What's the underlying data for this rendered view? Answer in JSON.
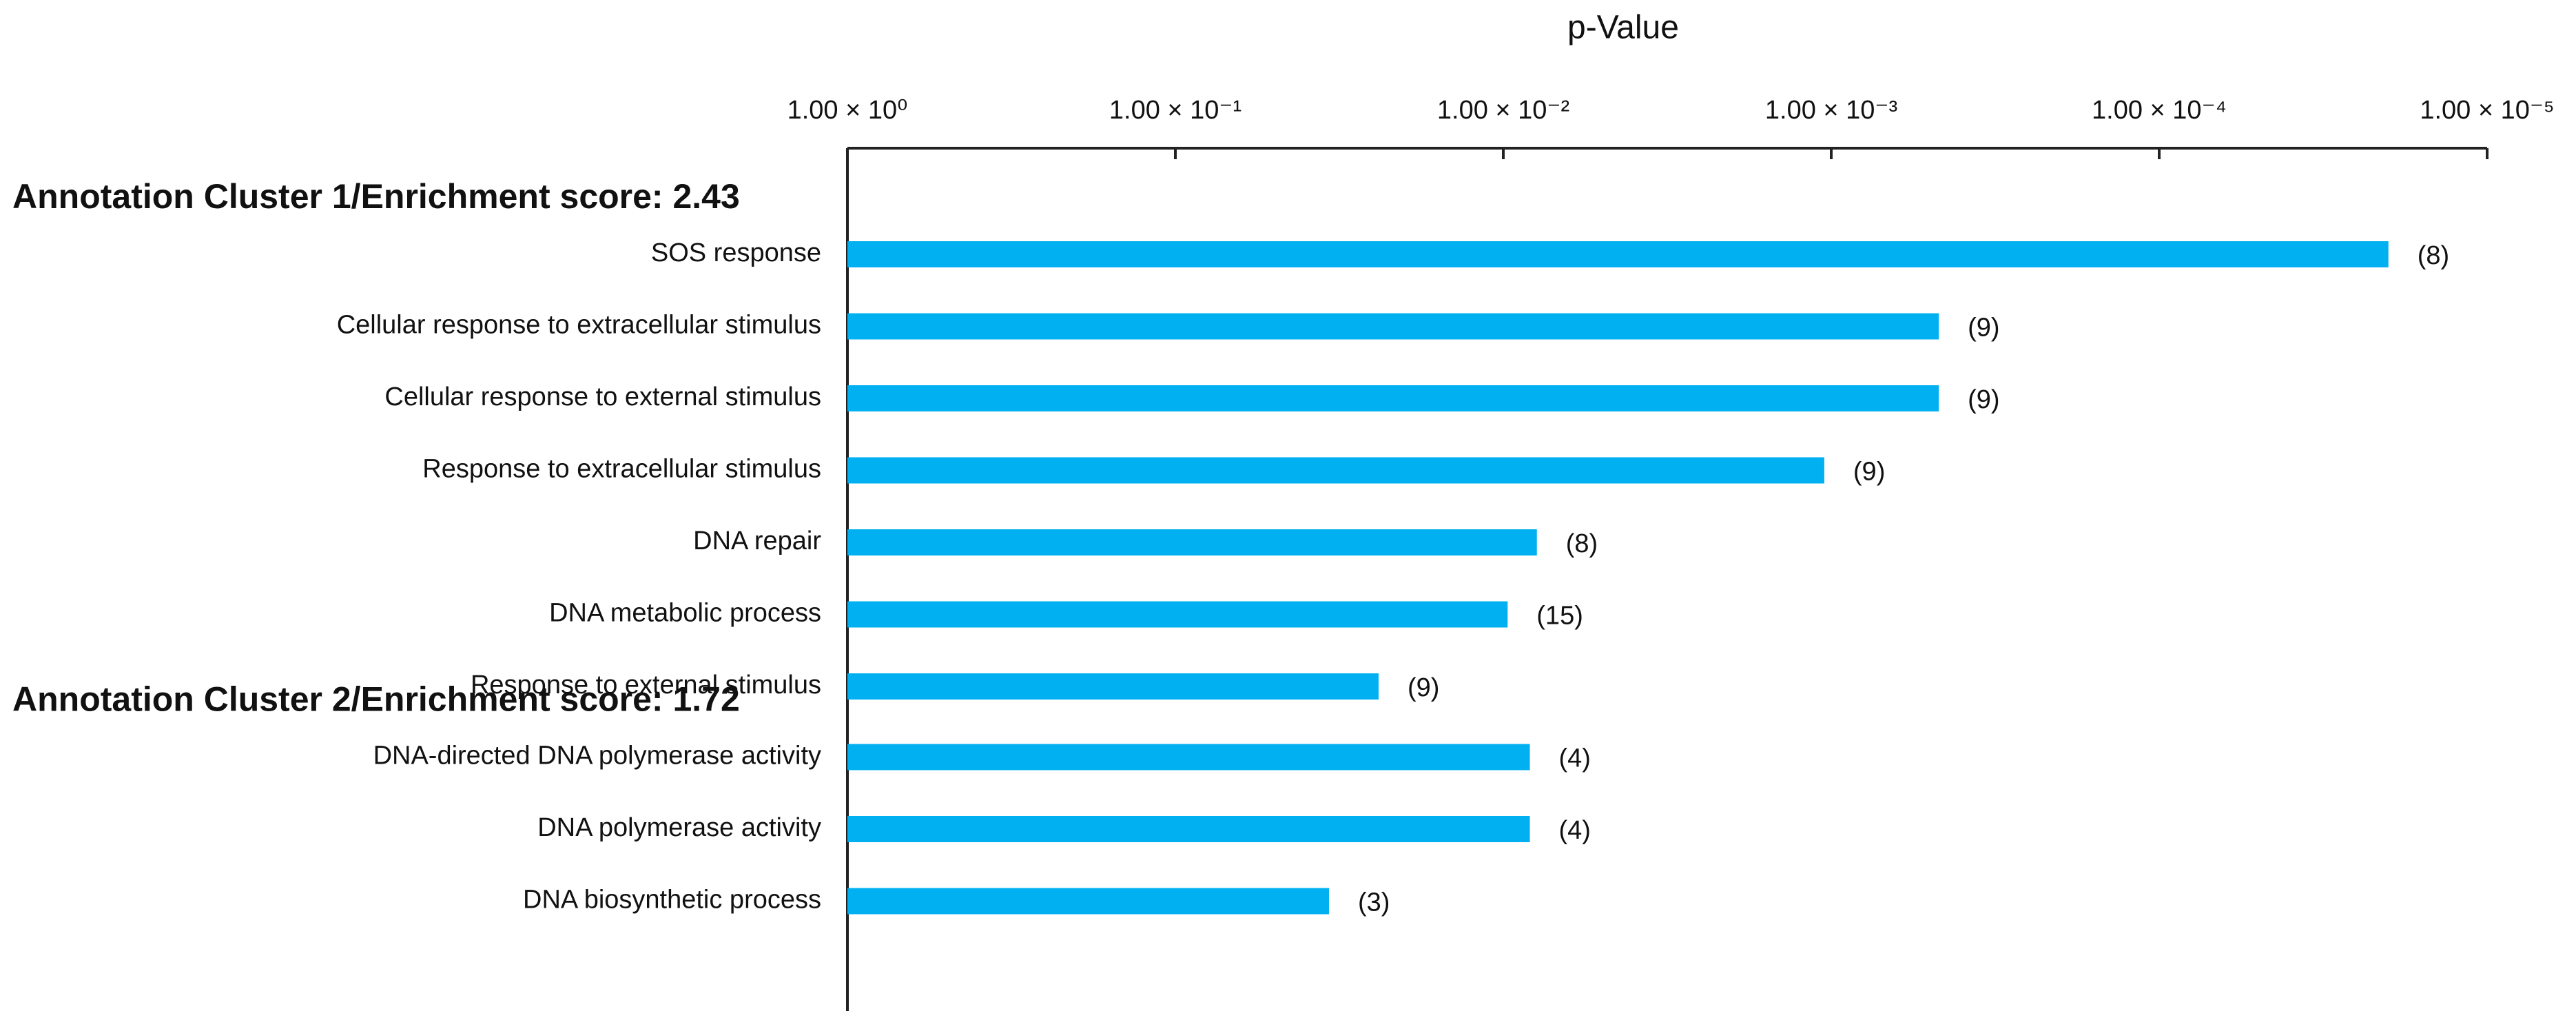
{
  "chart_data": {
    "type": "bar",
    "orientation": "horizontal",
    "title": "p-Value",
    "x_scale": "log",
    "xlim": [
      1,
      1e-05
    ],
    "color": "#00b0f0",
    "xticks": [
      {
        "value": 1,
        "label": "1.00 × 10⁰"
      },
      {
        "value": 0.1,
        "label": "1.00 × 10⁻¹"
      },
      {
        "value": 0.01,
        "label": "1.00 × 10⁻²"
      },
      {
        "value": 0.001,
        "label": "1.00 × 10⁻³"
      },
      {
        "value": 0.0001,
        "label": "1.00 × 10⁻⁴"
      },
      {
        "value": 1e-05,
        "label": "1.00 × 10⁻⁵"
      }
    ],
    "clusters": [
      {
        "title": "Annotation Cluster 1/Enrichment score: 2.43",
        "categories": [
          "SOS response",
          "Cellular response to extracellular stimulus",
          "Cellular response to external stimulus",
          "Response to extracellular stimulus",
          "DNA repair",
          "DNA metabolic process",
          "Response to external stimulus"
        ],
        "values": [
          2e-05,
          0.00047,
          0.00047,
          0.00105,
          0.0079,
          0.0097,
          0.024
        ],
        "count_labels": [
          "(8)",
          "(9)",
          "(9)",
          "(9)",
          "(8)",
          "(15)",
          "(9)"
        ]
      },
      {
        "title": "Annotation Cluster 2/Enrichment score: 1.72",
        "categories": [
          "DNA-directed DNA polymerase activity",
          "DNA polymerase activity",
          "DNA biosynthetic process"
        ],
        "values": [
          0.0083,
          0.0083,
          0.034
        ],
        "count_labels": [
          "(4)",
          "(4)",
          "(3)"
        ]
      }
    ]
  }
}
